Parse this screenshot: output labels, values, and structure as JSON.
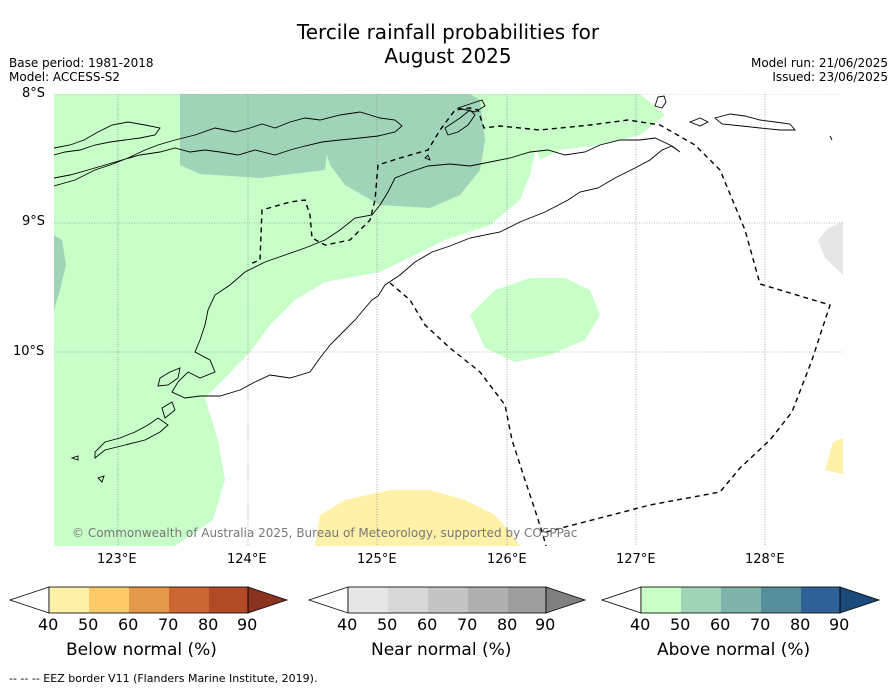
{
  "title": {
    "line1": "Tercile rainfall probabilities for",
    "line2": "August 2025"
  },
  "meta": {
    "base_period": "Base period: 1981-2018",
    "model": "Model: ACCESS-S2",
    "model_run": "Model run: 21/06/2025",
    "issued": "Issued: 23/06/2025"
  },
  "axes": {
    "lat_labels": [
      "8°S",
      "9°S",
      "10°S"
    ],
    "lon_labels": [
      "123°E",
      "124°E",
      "125°E",
      "126°E",
      "127°E",
      "128°E"
    ]
  },
  "copyright": "© Commonwealth of Australia 2025, Bureau of Meteorology, supported by COSPPac",
  "legends": [
    {
      "label": "Below normal (%)",
      "ticks": [
        "40",
        "50",
        "60",
        "70",
        "80",
        "90"
      ],
      "colors": [
        "#ffffff",
        "#fff1a8",
        "#fecb66",
        "#e4984a",
        "#cc6633",
        "#b24a28",
        "#8b3320"
      ]
    },
    {
      "label": "Near normal (%)",
      "ticks": [
        "40",
        "50",
        "60",
        "70",
        "80",
        "90"
      ],
      "colors": [
        "#ffffff",
        "#e6e6e6",
        "#d7d7d7",
        "#c5c5c5",
        "#b0b0b0",
        "#9d9d9d",
        "#808080"
      ]
    },
    {
      "label": "Above normal (%)",
      "ticks": [
        "40",
        "50",
        "60",
        "70",
        "80",
        "90"
      ],
      "colors": [
        "#ffffff",
        "#c8ffc8",
        "#a0d4b8",
        "#7db5ab",
        "#558f9b",
        "#2f6199",
        "#1a4b7a"
      ]
    }
  ],
  "footer": "--  --  -- EEZ border V11 (Flanders Marine Institute, 2019)."
}
